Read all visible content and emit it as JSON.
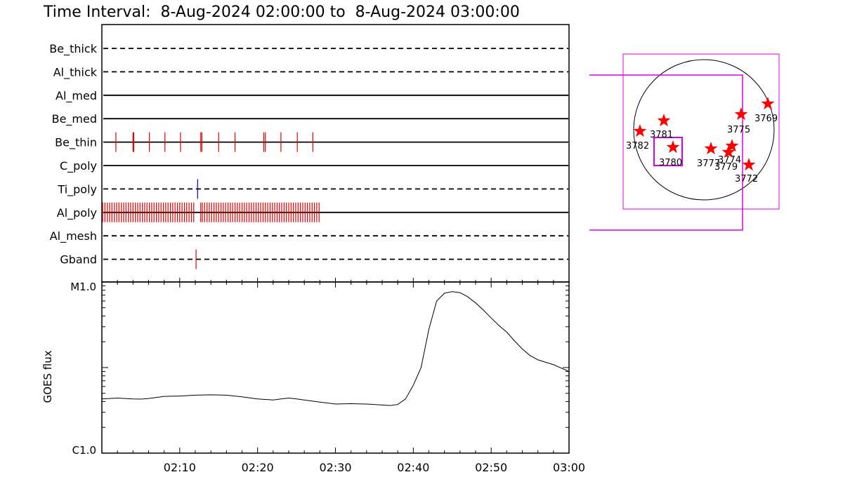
{
  "title": "Time Interval:  8-Aug-2024 02:00:00 to  8-Aug-2024 03:00:00",
  "colors": {
    "event_red": "#e00000",
    "event_blue": "#0000cc",
    "box_magenta": "#d800d8",
    "line": "#000000"
  },
  "chart_data": [
    {
      "type": "event-timeline",
      "x_unit": "minutes after 02:00",
      "xlim": [
        0,
        60
      ],
      "channels": [
        {
          "name": "Be_thick",
          "style": "dashed",
          "events": [],
          "color": ""
        },
        {
          "name": "Al_thick",
          "style": "dashed",
          "events": [],
          "color": ""
        },
        {
          "name": "Al_med",
          "style": "solid",
          "events": [],
          "color": ""
        },
        {
          "name": "Be_med",
          "style": "solid",
          "events": [],
          "color": ""
        },
        {
          "name": "Be_thin",
          "style": "solid",
          "color": "#e00000",
          "events": [
            1.8,
            4.0,
            4.1,
            6.1,
            8.1,
            10.1,
            12.7,
            12.85,
            15.0,
            17.1,
            20.8,
            21.0,
            23.0,
            25.1,
            27.1
          ]
        },
        {
          "name": "C_poly",
          "style": "solid",
          "events": [],
          "color": ""
        },
        {
          "name": "Ti_poly",
          "style": "dashed",
          "color": "#0000cc",
          "events": [
            12.3
          ]
        },
        {
          "name": "Al_poly",
          "style": "solid",
          "color": "#e00000",
          "events": [
            0.1,
            0.4,
            0.7,
            1.0,
            1.3,
            1.6,
            1.9,
            2.2,
            2.5,
            2.8,
            3.1,
            3.4,
            3.7,
            4.0,
            4.3,
            4.6,
            4.9,
            5.2,
            5.5,
            5.8,
            6.1,
            6.4,
            6.7,
            7.0,
            7.3,
            7.6,
            7.9,
            8.2,
            8.5,
            8.8,
            9.1,
            9.4,
            9.7,
            10.0,
            10.3,
            10.6,
            10.9,
            11.2,
            11.5,
            11.8,
            12.7,
            12.9,
            13.2,
            13.5,
            13.8,
            14.1,
            14.4,
            14.7,
            15.0,
            15.3,
            15.6,
            15.9,
            16.2,
            16.5,
            16.8,
            17.1,
            17.4,
            17.7,
            18.0,
            18.3,
            18.6,
            18.9,
            19.2,
            19.5,
            19.8,
            20.1,
            20.4,
            20.7,
            21.0,
            21.3,
            21.6,
            21.9,
            22.2,
            22.5,
            22.8,
            23.1,
            23.4,
            23.7,
            24.0,
            24.3,
            24.6,
            24.9,
            25.2,
            25.5,
            25.8,
            26.1,
            26.4,
            26.7,
            27.0,
            27.3,
            27.6,
            27.9
          ]
        },
        {
          "name": "Al_mesh",
          "style": "dashed",
          "events": [],
          "color": ""
        },
        {
          "name": "Gband",
          "style": "dashed",
          "color": "#e00000",
          "events": [
            12.1
          ]
        }
      ]
    },
    {
      "type": "line",
      "ylabel": "GOES flux",
      "y_scale": "log",
      "y_tick_labels": [
        "M1.0",
        "C1.0"
      ],
      "ylim_class": [
        "C1.0",
        "M1.0"
      ],
      "x_tick_labels": [
        "02:10",
        "02:20",
        "02:30",
        "02:40",
        "02:50",
        "03:00"
      ],
      "x_unit": "minutes after 02:00",
      "xlim": [
        0,
        60
      ],
      "series": [
        {
          "x": [
            0,
            2,
            4,
            5,
            6,
            8,
            10,
            12,
            14,
            16,
            18,
            20,
            22,
            23,
            24,
            25,
            26,
            28,
            30,
            32,
            34,
            36,
            37,
            38,
            39,
            40,
            41,
            42,
            43,
            44,
            45,
            46,
            47,
            48,
            49,
            50,
            51,
            52,
            53,
            54,
            55,
            56,
            58,
            60
          ],
          "y": [
            4.3,
            4.4,
            4.3,
            4.28,
            4.35,
            4.6,
            4.65,
            4.75,
            4.8,
            4.75,
            4.55,
            4.3,
            4.18,
            4.3,
            4.4,
            4.3,
            4.18,
            3.95,
            3.75,
            3.78,
            3.75,
            3.65,
            3.6,
            3.7,
            4.3,
            6.2,
            10.0,
            28.0,
            60.0,
            74.0,
            77.0,
            75.0,
            67.0,
            57.0,
            47.0,
            38.0,
            31.0,
            26.0,
            20.5,
            16.5,
            13.8,
            12.3,
            10.8,
            9.0
          ]
        }
      ]
    }
  ],
  "sun_map": {
    "regions": [
      {
        "label": "3769"
      },
      {
        "label": "3775"
      },
      {
        "label": "3781"
      },
      {
        "label": "3782"
      },
      {
        "label": "3780"
      },
      {
        "label": "3777"
      },
      {
        "label": "3774"
      },
      {
        "label": "3779"
      },
      {
        "label": "3772"
      }
    ]
  }
}
